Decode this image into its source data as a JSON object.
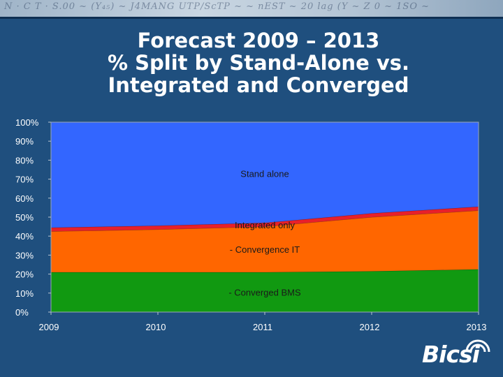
{
  "title_lines": [
    "Forecast 2009 – 2013",
    "% Split by Stand-Alone vs.",
    "Integrated and Converged"
  ],
  "header_scribble": "N · C T · S.00 ~ (Y₄₅) ~ J4MANG UTP/ScTP ~ ~ nEST ~ 20 lag (Y ~ Z 0 ~ 1SO ~",
  "logo_text": "Bicsi",
  "colors": {
    "background": "#1f4f7e",
    "stand_alone": "#3366ff",
    "integrated_only": "#e8202a",
    "convergence_it": "#ff6600",
    "converged_bms": "#119911"
  },
  "chart_data": {
    "type": "area",
    "stacked": true,
    "x": [
      "2009",
      "2010",
      "2011",
      "2012",
      "2013"
    ],
    "ylim": [
      0,
      100
    ],
    "yticks": [
      "0%",
      "10%",
      "20%",
      "30%",
      "40%",
      "50%",
      "60%",
      "70%",
      "80%",
      "90%",
      "100%"
    ],
    "series": [
      {
        "name": "Converged BMS",
        "label": "- Converged BMS",
        "values": [
          21,
          21,
          21,
          21.5,
          22.5
        ]
      },
      {
        "name": "Convergence IT",
        "label": "- Convergence IT",
        "values": [
          21.5,
          22.5,
          24,
          28.5,
          31
        ]
      },
      {
        "name": "Integrated only",
        "label": "Integrated only",
        "values": [
          2,
          2,
          2,
          2,
          2
        ]
      },
      {
        "name": "Stand alone",
        "label": "Stand alone",
        "values": [
          55.5,
          54.5,
          53,
          48,
          44.5
        ]
      }
    ],
    "labels_at": {
      "Stand alone": [
        2011,
        73
      ],
      "Integrated only": [
        2011,
        46
      ],
      "Convergence IT": [
        2011,
        33
      ],
      "Converged BMS": [
        2011,
        10.5
      ]
    }
  }
}
